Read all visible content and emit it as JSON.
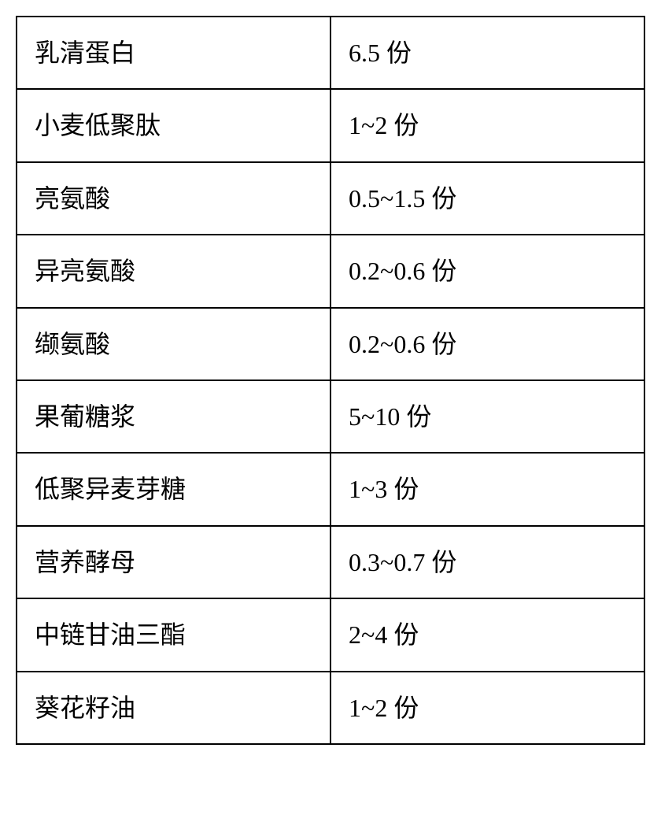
{
  "table": {
    "type": "table",
    "border_color": "#000000",
    "border_width": 2,
    "background_color": "#ffffff",
    "text_color": "#000000",
    "font_size": 32,
    "cell_padding": "26px 22px",
    "column_widths": [
      "50%",
      "50%"
    ],
    "unit_suffix": " 份",
    "rows": [
      {
        "name": "乳清蛋白",
        "value": "6.5 份"
      },
      {
        "name": "小麦低聚肽",
        "value": "1~2 份"
      },
      {
        "name": "亮氨酸",
        "value": "0.5~1.5 份"
      },
      {
        "name": "异亮氨酸",
        "value": "0.2~0.6 份"
      },
      {
        "name": "缬氨酸",
        "value": "0.2~0.6 份"
      },
      {
        "name": "果葡糖浆",
        "value": "5~10 份"
      },
      {
        "name": "低聚异麦芽糖",
        "value": "1~3 份"
      },
      {
        "name": "营养酵母",
        "value": "0.3~0.7 份"
      },
      {
        "name": "中链甘油三酯",
        "value": "2~4 份"
      },
      {
        "name": "葵花籽油",
        "value": "1~2 份"
      }
    ]
  }
}
